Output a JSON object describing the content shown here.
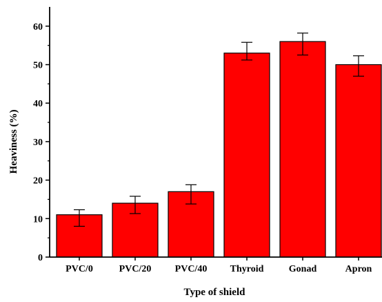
{
  "chart_data": {
    "type": "bar",
    "title": "",
    "xlabel": "Type of shield",
    "ylabel": "Heaviness (%)",
    "categories": [
      "PVC/0",
      "PVC/20",
      "PVC/40",
      "Thyroid",
      "Gonad",
      "Apron"
    ],
    "values": [
      11,
      14,
      17,
      53,
      56,
      50
    ],
    "error_low": [
      8,
      11.3,
      13.8,
      51.2,
      52.5,
      47
    ],
    "error_high": [
      12.3,
      15.8,
      18.8,
      55.8,
      58.2,
      52.3
    ],
    "ylim": [
      0,
      65
    ],
    "yticks": [
      0,
      10,
      20,
      30,
      40,
      50,
      60
    ],
    "grid": false,
    "colors": {
      "bar_fill": "#ff0000",
      "bar_stroke": "#000000",
      "axis": "#000000"
    }
  }
}
